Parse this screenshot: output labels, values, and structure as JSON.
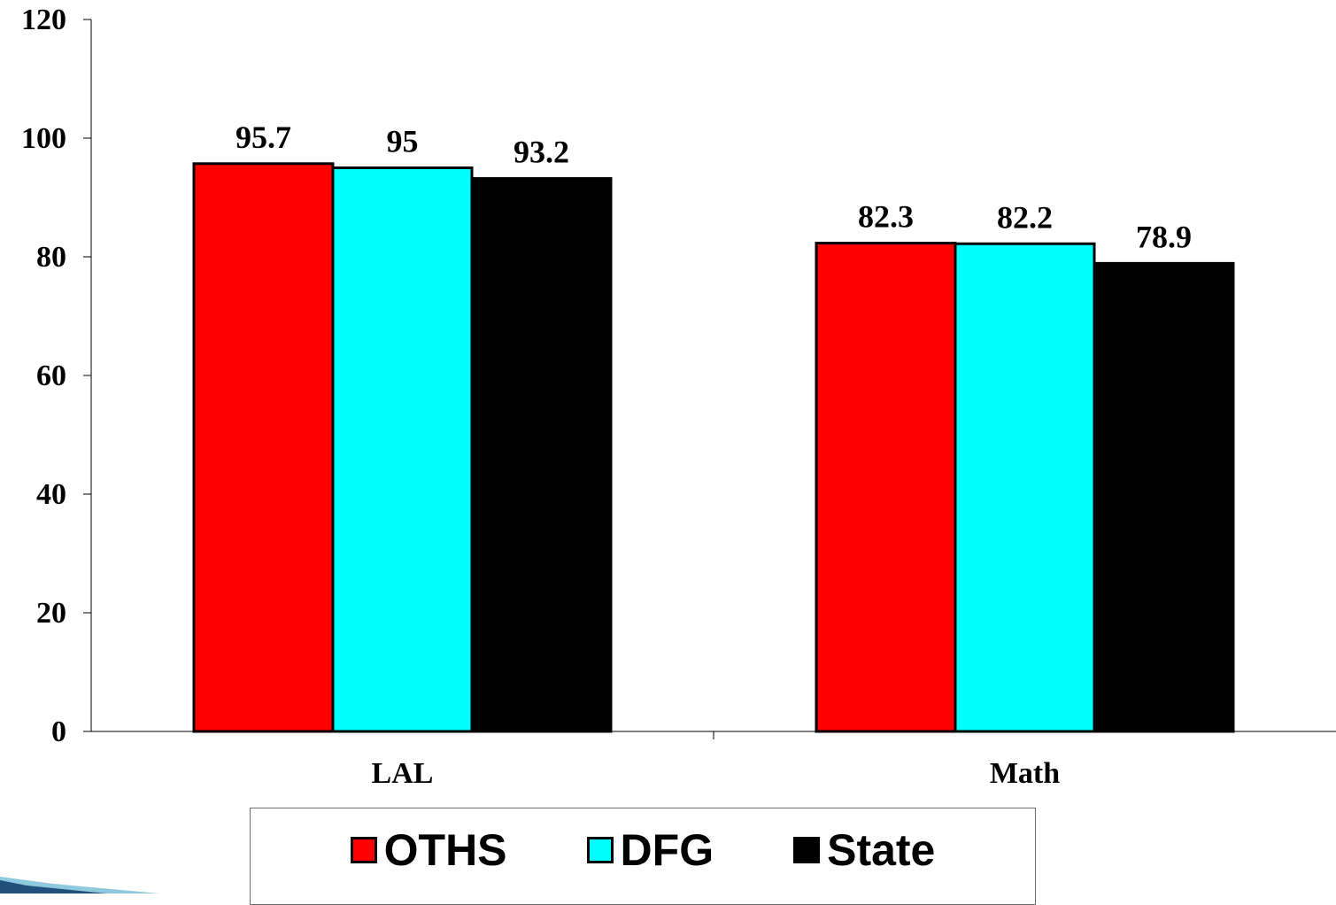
{
  "chart_data": {
    "type": "bar",
    "categories": [
      "LAL",
      "Math"
    ],
    "series": [
      {
        "name": "OTHS",
        "values": [
          95.7,
          82.3
        ],
        "color": "#ff0000"
      },
      {
        "name": "DFG",
        "values": [
          95,
          82.2
        ],
        "color": "#00ffff"
      },
      {
        "name": "State",
        "values": [
          93.2,
          78.9
        ],
        "color": "#000000"
      }
    ],
    "data_labels": [
      [
        "95.7",
        "82.3"
      ],
      [
        "95",
        "82.2"
      ],
      [
        "93.2",
        "78.9"
      ]
    ],
    "y_ticks": [
      "0",
      "20",
      "40",
      "60",
      "80",
      "100",
      "120"
    ],
    "ylim": [
      0,
      120
    ],
    "title": "",
    "xlabel": "",
    "ylabel": "",
    "grid": false,
    "legend_position": "bottom"
  },
  "legend": {
    "items": [
      {
        "label": "OTHS",
        "color": "#ff0000"
      },
      {
        "label": "DFG",
        "color": "#00ffff"
      },
      {
        "label": "State",
        "color": "#000000"
      }
    ]
  },
  "decor": {
    "corner_icon": "slide-corner-arrow"
  }
}
